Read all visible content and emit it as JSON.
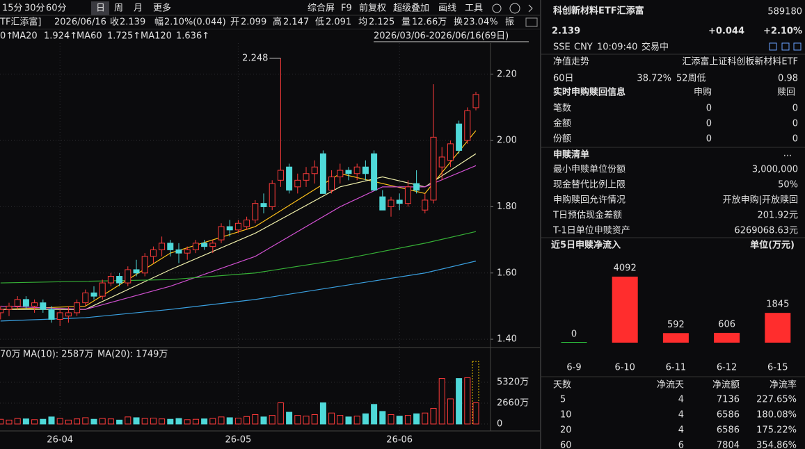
{
  "toolbar": {
    "periods": [
      "15分",
      "30分",
      "60分",
      "日",
      "周",
      "月",
      "更多"
    ],
    "tools": [
      "综合屏",
      "F9",
      "前复权",
      "超级叠加",
      "画线",
      "工具"
    ]
  },
  "quote": {
    "name": "TF汇添富]",
    "date": "2026/06/16",
    "close_label": "收",
    "close": "2.139",
    "change_label": "幅",
    "change": "2.10%(0.044)",
    "open_label": "开",
    "open": "2.099",
    "high_label": "高",
    "high": "2.147",
    "low_label": "低",
    "low": "2.091",
    "avg_label": "均",
    "avg": "2.125",
    "volume_label": "量",
    "volume": "12.66万",
    "turnover_label": "换",
    "turnover": "23.04%",
    "amplitude_label": "振"
  },
  "ma_bar": {
    "ma10_tail": "0↑",
    "ma20_label": "MA20",
    "ma20": "1.924↑",
    "ma60_label": "MA60",
    "ma60": "1.725↑",
    "ma120_label": "MA120",
    "ma120": "1.636↑",
    "range": "2026/03/06-2026/06/16(69日)"
  },
  "volume_bar": {
    "vol_tail": "70万",
    "ma10": "MA(10): 2587万",
    "ma20": "MA(20): 1749万"
  },
  "chart_data": [
    {
      "type": "candlestick",
      "up_color": "#ff3b3b",
      "down_color": "#4fd9d9",
      "ylim": [
        1.375,
        2.294
      ],
      "yticks": [
        {
          "value": 1.4,
          "label": "1.40"
        },
        {
          "value": 1.6,
          "label": "1.60"
        },
        {
          "value": 1.8,
          "label": "1.80"
        },
        {
          "value": 2.0,
          "label": "2.00"
        },
        {
          "value": 2.2,
          "label": "2.20"
        }
      ],
      "xticks": [
        {
          "value": 7,
          "label": "26-04"
        },
        {
          "value": 28,
          "label": "26-05"
        },
        {
          "value": 47,
          "label": "26-06"
        }
      ],
      "grid": true,
      "candles": [
        {
          "o": 1.48,
          "h": 1.5,
          "l": 1.46,
          "c": 1.49
        },
        {
          "o": 1.49,
          "h": 1.51,
          "l": 1.47,
          "c": 1.5
        },
        {
          "o": 1.5,
          "h": 1.53,
          "l": 1.49,
          "c": 1.52
        },
        {
          "o": 1.52,
          "h": 1.53,
          "l": 1.49,
          "c": 1.5
        },
        {
          "o": 1.5,
          "h": 1.52,
          "l": 1.48,
          "c": 1.51
        },
        {
          "o": 1.51,
          "h": 1.52,
          "l": 1.48,
          "c": 1.49
        },
        {
          "o": 1.49,
          "h": 1.5,
          "l": 1.45,
          "c": 1.46
        },
        {
          "o": 1.46,
          "h": 1.49,
          "l": 1.44,
          "c": 1.48
        },
        {
          "o": 1.47,
          "h": 1.5,
          "l": 1.45,
          "c": 1.48
        },
        {
          "o": 1.48,
          "h": 1.52,
          "l": 1.47,
          "c": 1.51
        },
        {
          "o": 1.51,
          "h": 1.55,
          "l": 1.5,
          "c": 1.54
        },
        {
          "o": 1.54,
          "h": 1.56,
          "l": 1.52,
          "c": 1.53
        },
        {
          "o": 1.53,
          "h": 1.58,
          "l": 1.52,
          "c": 1.57
        },
        {
          "o": 1.57,
          "h": 1.6,
          "l": 1.56,
          "c": 1.59
        },
        {
          "o": 1.59,
          "h": 1.6,
          "l": 1.56,
          "c": 1.57
        },
        {
          "o": 1.57,
          "h": 1.62,
          "l": 1.56,
          "c": 1.61
        },
        {
          "o": 1.61,
          "h": 1.64,
          "l": 1.59,
          "c": 1.6
        },
        {
          "o": 1.6,
          "h": 1.66,
          "l": 1.59,
          "c": 1.65
        },
        {
          "o": 1.65,
          "h": 1.68,
          "l": 1.63,
          "c": 1.67
        },
        {
          "o": 1.67,
          "h": 1.71,
          "l": 1.65,
          "c": 1.69
        },
        {
          "o": 1.69,
          "h": 1.7,
          "l": 1.65,
          "c": 1.67
        },
        {
          "o": 1.67,
          "h": 1.69,
          "l": 1.63,
          "c": 1.66
        },
        {
          "o": 1.66,
          "h": 1.68,
          "l": 1.64,
          "c": 1.67
        },
        {
          "o": 1.67,
          "h": 1.7,
          "l": 1.66,
          "c": 1.69
        },
        {
          "o": 1.69,
          "h": 1.7,
          "l": 1.67,
          "c": 1.68
        },
        {
          "o": 1.68,
          "h": 1.7,
          "l": 1.66,
          "c": 1.69
        },
        {
          "o": 1.7,
          "h": 1.75,
          "l": 1.69,
          "c": 1.74
        },
        {
          "o": 1.74,
          "h": 1.76,
          "l": 1.71,
          "c": 1.73
        },
        {
          "o": 1.73,
          "h": 1.76,
          "l": 1.72,
          "c": 1.75
        },
        {
          "o": 1.74,
          "h": 1.77,
          "l": 1.73,
          "c": 1.76
        },
        {
          "o": 1.76,
          "h": 1.82,
          "l": 1.75,
          "c": 1.81
        },
        {
          "o": 1.81,
          "h": 1.84,
          "l": 1.78,
          "c": 1.8
        },
        {
          "o": 1.8,
          "h": 1.88,
          "l": 1.79,
          "c": 1.87
        },
        {
          "o": 1.88,
          "h": 2.248,
          "l": 1.86,
          "c": 1.91
        },
        {
          "o": 1.92,
          "h": 1.93,
          "l": 1.84,
          "c": 1.85
        },
        {
          "o": 1.86,
          "h": 1.9,
          "l": 1.84,
          "c": 1.88
        },
        {
          "o": 1.88,
          "h": 1.92,
          "l": 1.86,
          "c": 1.9
        },
        {
          "o": 1.9,
          "h": 1.94,
          "l": 1.87,
          "c": 1.92
        },
        {
          "o": 1.96,
          "h": 1.97,
          "l": 1.84,
          "c": 1.84
        },
        {
          "o": 1.85,
          "h": 1.91,
          "l": 1.84,
          "c": 1.89
        },
        {
          "o": 1.89,
          "h": 1.93,
          "l": 1.87,
          "c": 1.91
        },
        {
          "o": 1.91,
          "h": 1.92,
          "l": 1.88,
          "c": 1.9
        },
        {
          "o": 1.9,
          "h": 1.93,
          "l": 1.88,
          "c": 1.92
        },
        {
          "o": 1.92,
          "h": 1.94,
          "l": 1.88,
          "c": 1.9
        },
        {
          "o": 1.96,
          "h": 1.97,
          "l": 1.85,
          "c": 1.85
        },
        {
          "o": 1.83,
          "h": 1.85,
          "l": 1.79,
          "c": 1.79
        },
        {
          "o": 1.8,
          "h": 1.83,
          "l": 1.77,
          "c": 1.82
        },
        {
          "o": 1.82,
          "h": 1.84,
          "l": 1.79,
          "c": 1.81
        },
        {
          "o": 1.81,
          "h": 1.88,
          "l": 1.8,
          "c": 1.86
        },
        {
          "o": 1.87,
          "h": 1.91,
          "l": 1.84,
          "c": 1.85
        },
        {
          "o": 1.79,
          "h": 1.84,
          "l": 1.78,
          "c": 1.82
        },
        {
          "o": 1.82,
          "h": 2.17,
          "l": 1.81,
          "c": 2.01
        },
        {
          "o": 1.92,
          "h": 1.98,
          "l": 1.88,
          "c": 1.95
        },
        {
          "o": 1.94,
          "h": 2.0,
          "l": 1.92,
          "c": 1.99
        },
        {
          "o": 2.05,
          "h": 2.06,
          "l": 1.96,
          "c": 1.97
        },
        {
          "o": 2.0,
          "h": 2.1,
          "l": 1.99,
          "c": 2.09
        },
        {
          "o": 2.099,
          "h": 2.147,
          "l": 2.091,
          "c": 2.139
        }
      ],
      "series": [
        {
          "color": "#ffc21a",
          "x": [
            0,
            10,
            20,
            30,
            40,
            45,
            50,
            56
          ],
          "values": [
            1.49,
            1.5,
            1.66,
            1.74,
            1.9,
            1.87,
            1.84,
            2.03
          ]
        },
        {
          "color": "#eeeeaa",
          "x": [
            0,
            10,
            20,
            30,
            40,
            45,
            50,
            56
          ],
          "values": [
            1.49,
            1.49,
            1.61,
            1.72,
            1.86,
            1.89,
            1.86,
            1.96
          ]
        },
        {
          "name": "MA20",
          "color": "#d050d0",
          "x": [
            0,
            10,
            20,
            30,
            40,
            45,
            50,
            56
          ],
          "values": [
            1.5,
            1.49,
            1.56,
            1.65,
            1.8,
            1.86,
            1.86,
            1.924
          ]
        },
        {
          "name": "MA60",
          "color": "#36b036",
          "x": [
            0,
            10,
            20,
            30,
            40,
            50,
            56
          ],
          "values": [
            1.57,
            1.575,
            1.58,
            1.6,
            1.64,
            1.69,
            1.725
          ]
        },
        {
          "name": "MA120",
          "color": "#3aa0e0",
          "x": [
            0,
            10,
            20,
            30,
            40,
            50,
            56
          ],
          "values": [
            1.455,
            1.465,
            1.49,
            1.52,
            1.56,
            1.6,
            1.636
          ]
        }
      ]
    },
    {
      "type": "bar",
      "ylim": [
        0,
        7980
      ],
      "yticks": [
        {
          "value": 5320,
          "label": "5320万"
        },
        {
          "value": 2660,
          "label": "2660万"
        },
        0
      ],
      "values": [
        600,
        500,
        700,
        650,
        550,
        600,
        900,
        700,
        500,
        650,
        800,
        600,
        700,
        650,
        500,
        900,
        800,
        700,
        750,
        650,
        600,
        700,
        550,
        600,
        650,
        700,
        900,
        800,
        750,
        950,
        1200,
        900,
        1100,
        2700,
        1500,
        1100,
        1000,
        1200,
        2700,
        1400,
        1100,
        900,
        1000,
        1300,
        2500,
        1600,
        1200,
        1000,
        1100,
        1300,
        1400,
        2000,
        5800,
        3200,
        5800,
        5900,
        2700
      ]
    },
    {
      "type": "bar",
      "title": "近5日申赎净流入",
      "unit": "单位(万元)",
      "categories": [
        "6-9",
        "6-10",
        "6-11",
        "6-12",
        "6-15"
      ],
      "values": [
        0,
        4092,
        592,
        606,
        1845
      ],
      "color": "#ff2d2d",
      "zero_color": "#2ecc40"
    }
  ],
  "panel": {
    "name": "科创新材料ETF汇添富",
    "code": "589180",
    "price": "2.139",
    "change": "+0.044",
    "change_pct": "+2.10%",
    "exchange": "SSE",
    "currency": "CNY",
    "time": "10:09:40",
    "status": "交易中",
    "nav_label": "净值走势",
    "fund_name": "汇添富上证科创板新材料ETF",
    "r60_label": "60日",
    "r60": "38.72%",
    "low52_label": "52周低",
    "low52": "0.98",
    "realtime": {
      "title": "实时申购赎回信息",
      "columns": [
        "申购",
        "赎回"
      ],
      "rows": [
        [
          "笔数",
          "0",
          "0"
        ],
        [
          "金额",
          "0",
          "0"
        ],
        [
          "份额",
          "0",
          "0"
        ]
      ]
    },
    "list": {
      "title": "申赎清单",
      "more": "...",
      "rows": [
        [
          "最小申赎单位份额",
          "3,000,000"
        ],
        [
          "现金替代比例上限",
          "50%"
        ],
        [
          "申购赎回允许情况",
          "开放申购|开放赎回"
        ],
        [
          "T日预估现金差额",
          "201.92元"
        ],
        [
          "T-1日单位申赎资产",
          "6269068.63元"
        ]
      ]
    },
    "flow_table": {
      "columns": [
        "天数",
        "净流天",
        "净流额",
        "净流率"
      ],
      "rows": [
        [
          "5",
          "4",
          "7136",
          "227.65%"
        ],
        [
          "10",
          "4",
          "6586",
          "180.08%"
        ],
        [
          "20",
          "4",
          "6586",
          "175.22%"
        ],
        [
          "60",
          "6",
          "7804",
          "354.86%"
        ]
      ]
    }
  }
}
